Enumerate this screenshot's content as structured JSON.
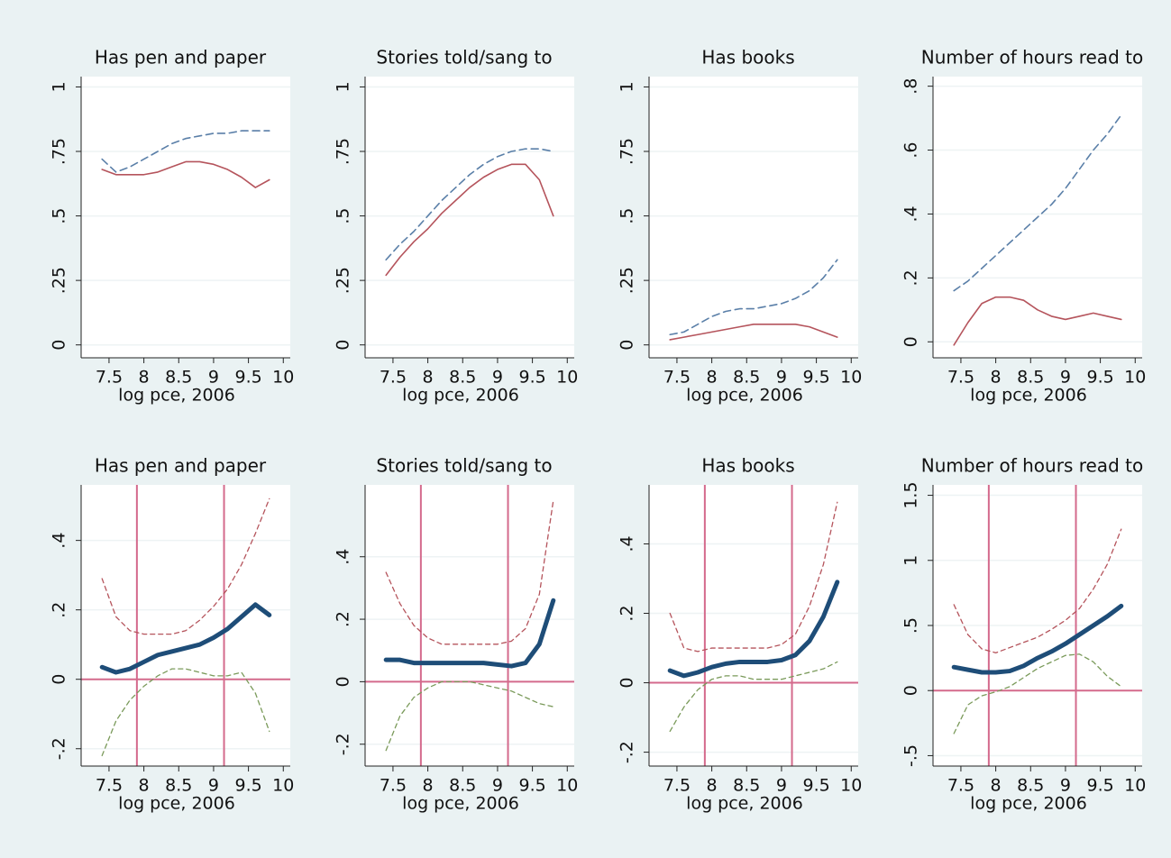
{
  "chart_data": [
    {
      "type": "line",
      "title": "Has pen and paper",
      "xlabel": "log pce, 2006",
      "x": [
        7.4,
        7.6,
        7.8,
        8.0,
        8.2,
        8.4,
        8.6,
        8.8,
        9.0,
        9.2,
        9.4,
        9.6,
        9.8
      ],
      "xlim": [
        7.1,
        10.1
      ],
      "xticks": [
        7.5,
        8,
        8.5,
        9,
        9.5,
        10
      ],
      "ylim": [
        -0.05,
        1.04
      ],
      "yticks": [
        0,
        {
          "value": 0.25,
          "label": ".25"
        },
        {
          "value": 0.5,
          "label": ".5"
        },
        {
          "value": 0.75,
          "label": ".75"
        },
        1
      ],
      "grid": true,
      "series": [
        {
          "color": "#5a7fa8",
          "dash": "8,5",
          "width": 1.6,
          "values": [
            0.72,
            0.67,
            0.69,
            0.72,
            0.75,
            0.78,
            0.8,
            0.81,
            0.82,
            0.82,
            0.83,
            0.83,
            0.83
          ]
        },
        {
          "color": "#b5545c",
          "dash": "none",
          "width": 1.6,
          "values": [
            0.68,
            0.66,
            0.66,
            0.66,
            0.67,
            0.69,
            0.71,
            0.71,
            0.7,
            0.68,
            0.65,
            0.61,
            0.64
          ]
        }
      ]
    },
    {
      "type": "line",
      "title": "Stories told/sang to",
      "xlabel": "log pce, 2006",
      "x": [
        7.4,
        7.6,
        7.8,
        8.0,
        8.2,
        8.4,
        8.6,
        8.8,
        9.0,
        9.2,
        9.4,
        9.6,
        9.8
      ],
      "xlim": [
        7.1,
        10.1
      ],
      "xticks": [
        7.5,
        8,
        8.5,
        9,
        9.5,
        10
      ],
      "ylim": [
        -0.05,
        1.04
      ],
      "yticks": [
        0,
        {
          "value": 0.25,
          "label": ".25"
        },
        {
          "value": 0.5,
          "label": ".5"
        },
        {
          "value": 0.75,
          "label": ".75"
        },
        1
      ],
      "grid": true,
      "series": [
        {
          "color": "#5a7fa8",
          "dash": "8,5",
          "width": 1.6,
          "values": [
            0.33,
            0.39,
            0.44,
            0.5,
            0.56,
            0.61,
            0.66,
            0.7,
            0.73,
            0.75,
            0.76,
            0.76,
            0.75
          ]
        },
        {
          "color": "#b5545c",
          "dash": "none",
          "width": 1.6,
          "values": [
            0.27,
            0.34,
            0.4,
            0.45,
            0.51,
            0.56,
            0.61,
            0.65,
            0.68,
            0.7,
            0.7,
            0.64,
            0.5
          ]
        }
      ]
    },
    {
      "type": "line",
      "title": "Has books",
      "xlabel": "log pce, 2006",
      "x": [
        7.4,
        7.6,
        7.8,
        8.0,
        8.2,
        8.4,
        8.6,
        8.8,
        9.0,
        9.2,
        9.4,
        9.6,
        9.8
      ],
      "xlim": [
        7.1,
        10.1
      ],
      "xticks": [
        7.5,
        8,
        8.5,
        9,
        9.5,
        10
      ],
      "ylim": [
        -0.05,
        1.04
      ],
      "yticks": [
        0,
        {
          "value": 0.25,
          "label": ".25"
        },
        {
          "value": 0.5,
          "label": ".5"
        },
        {
          "value": 0.75,
          "label": ".75"
        },
        1
      ],
      "grid": true,
      "series": [
        {
          "color": "#5a7fa8",
          "dash": "8,5",
          "width": 1.6,
          "values": [
            0.04,
            0.05,
            0.08,
            0.11,
            0.13,
            0.14,
            0.14,
            0.15,
            0.16,
            0.18,
            0.21,
            0.26,
            0.33
          ]
        },
        {
          "color": "#b5545c",
          "dash": "none",
          "width": 1.6,
          "values": [
            0.02,
            0.03,
            0.04,
            0.05,
            0.06,
            0.07,
            0.08,
            0.08,
            0.08,
            0.08,
            0.07,
            0.05,
            0.03
          ]
        }
      ]
    },
    {
      "type": "line",
      "title": "Number of hours read to",
      "xlabel": "log pce, 2006",
      "x": [
        7.4,
        7.6,
        7.8,
        8.0,
        8.2,
        8.4,
        8.6,
        8.8,
        9.0,
        9.2,
        9.4,
        9.6,
        9.8
      ],
      "xlim": [
        7.1,
        10.1
      ],
      "xticks": [
        7.5,
        8,
        8.5,
        9,
        9.5,
        10
      ],
      "ylim": [
        -0.05,
        0.83
      ],
      "yticks": [
        0,
        {
          "value": 0.2,
          "label": ".2"
        },
        {
          "value": 0.4,
          "label": ".4"
        },
        {
          "value": 0.6,
          "label": ".6"
        },
        {
          "value": 0.8,
          "label": ".8"
        }
      ],
      "grid": true,
      "series": [
        {
          "color": "#5a7fa8",
          "dash": "8,5",
          "width": 1.6,
          "values": [
            0.16,
            0.19,
            0.23,
            0.27,
            0.31,
            0.35,
            0.39,
            0.43,
            0.48,
            0.54,
            0.6,
            0.65,
            0.71
          ]
        },
        {
          "color": "#b5545c",
          "dash": "none",
          "width": 1.6,
          "values": [
            -0.01,
            0.06,
            0.12,
            0.14,
            0.14,
            0.13,
            0.1,
            0.08,
            0.07,
            0.08,
            0.09,
            0.08,
            0.07
          ]
        }
      ]
    },
    {
      "type": "line",
      "title": "Has pen and paper",
      "xlabel": "log pce, 2006",
      "x": [
        7.4,
        7.6,
        7.8,
        8.0,
        8.2,
        8.4,
        8.6,
        8.8,
        9.0,
        9.2,
        9.4,
        9.6,
        9.8
      ],
      "xlim": [
        7.1,
        10.1
      ],
      "xticks": [
        7.5,
        8,
        8.5,
        9,
        9.5,
        10
      ],
      "ylim": [
        -0.25,
        0.56
      ],
      "yticks": [
        {
          "value": -0.2,
          "label": "-.2"
        },
        0,
        {
          "value": 0.2,
          "label": ".2"
        },
        {
          "value": 0.4,
          "label": ".4"
        }
      ],
      "grid": true,
      "xlines": [
        7.9,
        9.15
      ],
      "ylines": [
        0
      ],
      "refline_color": "#d46a8c",
      "series": [
        {
          "color": "#b5545c",
          "dash": "5,4",
          "width": 1.3,
          "values": [
            0.29,
            0.18,
            0.14,
            0.13,
            0.13,
            0.13,
            0.14,
            0.17,
            0.21,
            0.26,
            0.33,
            0.42,
            0.52
          ]
        },
        {
          "color": "#7a9a5a",
          "dash": "5,4",
          "width": 1.3,
          "values": [
            -0.22,
            -0.12,
            -0.06,
            -0.02,
            0.01,
            0.03,
            0.03,
            0.02,
            0.01,
            0.01,
            0.02,
            -0.04,
            -0.15
          ]
        },
        {
          "color": "#1e4d78",
          "dash": "none",
          "width": 5,
          "values": [
            0.035,
            0.02,
            0.03,
            0.05,
            0.07,
            0.08,
            0.09,
            0.1,
            0.12,
            0.145,
            0.18,
            0.215,
            0.185
          ]
        }
      ]
    },
    {
      "type": "line",
      "title": "Stories told/sang to",
      "xlabel": "log pce, 2006",
      "x": [
        7.4,
        7.6,
        7.8,
        8.0,
        8.2,
        8.4,
        8.6,
        8.8,
        9.0,
        9.2,
        9.4,
        9.6,
        9.8
      ],
      "xlim": [
        7.1,
        10.1
      ],
      "xticks": [
        7.5,
        8,
        8.5,
        9,
        9.5,
        10
      ],
      "ylim": [
        -0.27,
        0.63
      ],
      "yticks": [
        {
          "value": -0.2,
          "label": "-.2"
        },
        0,
        {
          "value": 0.2,
          "label": ".2"
        },
        {
          "value": 0.4,
          "label": ".4"
        }
      ],
      "grid": true,
      "xlines": [
        7.9,
        9.15
      ],
      "ylines": [
        0
      ],
      "refline_color": "#d46a8c",
      "series": [
        {
          "color": "#b5545c",
          "dash": "5,4",
          "width": 1.3,
          "values": [
            0.35,
            0.25,
            0.18,
            0.14,
            0.12,
            0.12,
            0.12,
            0.12,
            0.12,
            0.13,
            0.17,
            0.28,
            0.58
          ]
        },
        {
          "color": "#7a9a5a",
          "dash": "5,4",
          "width": 1.3,
          "values": [
            -0.22,
            -0.11,
            -0.05,
            -0.02,
            0,
            0,
            0,
            -0.01,
            -0.02,
            -0.03,
            -0.05,
            -0.07,
            -0.08
          ]
        },
        {
          "color": "#1e4d78",
          "dash": "none",
          "width": 5,
          "values": [
            0.07,
            0.07,
            0.06,
            0.06,
            0.06,
            0.06,
            0.06,
            0.06,
            0.055,
            0.05,
            0.06,
            0.12,
            0.26
          ]
        }
      ]
    },
    {
      "type": "line",
      "title": "Has books",
      "xlabel": "log pce, 2006",
      "x": [
        7.4,
        7.6,
        7.8,
        8.0,
        8.2,
        8.4,
        8.6,
        8.8,
        9.0,
        9.2,
        9.4,
        9.6,
        9.8
      ],
      "xlim": [
        7.1,
        10.1
      ],
      "xticks": [
        7.5,
        8,
        8.5,
        9,
        9.5,
        10
      ],
      "ylim": [
        -0.24,
        0.57
      ],
      "yticks": [
        {
          "value": -0.2,
          "label": "-.2"
        },
        0,
        {
          "value": 0.2,
          "label": ".2"
        },
        {
          "value": 0.4,
          "label": ".4"
        }
      ],
      "grid": true,
      "xlines": [
        7.9,
        9.15
      ],
      "ylines": [
        0
      ],
      "refline_color": "#d46a8c",
      "series": [
        {
          "color": "#b5545c",
          "dash": "5,4",
          "width": 1.3,
          "values": [
            0.2,
            0.1,
            0.09,
            0.1,
            0.1,
            0.1,
            0.1,
            0.1,
            0.11,
            0.14,
            0.22,
            0.34,
            0.52
          ]
        },
        {
          "color": "#7a9a5a",
          "dash": "5,4",
          "width": 1.3,
          "values": [
            -0.14,
            -0.07,
            -0.02,
            0.01,
            0.02,
            0.02,
            0.01,
            0.01,
            0.01,
            0.02,
            0.03,
            0.04,
            0.06
          ]
        },
        {
          "color": "#1e4d78",
          "dash": "none",
          "width": 5,
          "values": [
            0.035,
            0.02,
            0.03,
            0.045,
            0.055,
            0.06,
            0.06,
            0.06,
            0.065,
            0.08,
            0.12,
            0.19,
            0.29
          ]
        }
      ]
    },
    {
      "type": "line",
      "title": "Number of hours read to",
      "xlabel": "log pce, 2006",
      "x": [
        7.4,
        7.6,
        7.8,
        8.0,
        8.2,
        8.4,
        8.6,
        8.8,
        9.0,
        9.2,
        9.4,
        9.6,
        9.8
      ],
      "xlim": [
        7.1,
        10.1
      ],
      "xticks": [
        7.5,
        8,
        8.5,
        9,
        9.5,
        10
      ],
      "ylim": [
        -0.58,
        1.58
      ],
      "yticks": [
        {
          "value": -0.5,
          "label": "-.5"
        },
        0,
        {
          "value": 0.5,
          "label": ".5"
        },
        1,
        1.5
      ],
      "grid": true,
      "xlines": [
        7.9,
        9.15
      ],
      "ylines": [
        0
      ],
      "refline_color": "#d46a8c",
      "series": [
        {
          "color": "#b5545c",
          "dash": "5,4",
          "width": 1.3,
          "values": [
            0.66,
            0.43,
            0.32,
            0.29,
            0.33,
            0.37,
            0.41,
            0.47,
            0.54,
            0.63,
            0.78,
            0.97,
            1.24
          ]
        },
        {
          "color": "#7a9a5a",
          "dash": "5,4",
          "width": 1.3,
          "values": [
            -0.33,
            -0.11,
            -0.04,
            -0.01,
            0.03,
            0.1,
            0.17,
            0.22,
            0.27,
            0.28,
            0.22,
            0.11,
            0.03
          ]
        },
        {
          "color": "#1e4d78",
          "dash": "none",
          "width": 5,
          "values": [
            0.18,
            0.16,
            0.14,
            0.14,
            0.15,
            0.19,
            0.25,
            0.3,
            0.36,
            0.43,
            0.5,
            0.57,
            0.65
          ]
        }
      ]
    }
  ]
}
